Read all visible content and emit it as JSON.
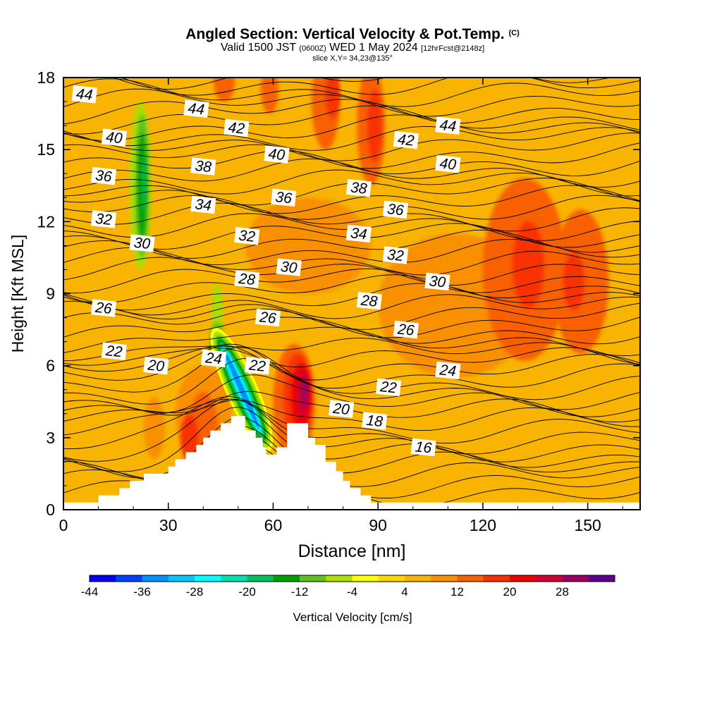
{
  "title": {
    "main": "Angled Section: Vertical Velocity & Pot.Temp.",
    "copyright": "(C)",
    "valid_prefix": "Valid 1500 JST",
    "valid_utc": "(0600Z)",
    "valid_date": "WED 1 May 2024",
    "forecast_info": "[12hrFcst@2148z]",
    "slice": "slice X,Y= 34,23@135°"
  },
  "chart_data": {
    "type": "heatmap",
    "xlabel": "Distance [nm]",
    "ylabel": "Height [Kft MSL]",
    "xlim": [
      0,
      165
    ],
    "ylim": [
      0,
      18
    ],
    "x_ticks": [
      "0",
      "30",
      "60",
      "90",
      "120",
      "150"
    ],
    "y_ticks": [
      "0",
      "3",
      "6",
      "9",
      "12",
      "15",
      "18"
    ],
    "x_tick_values": [
      0,
      30,
      60,
      90,
      120,
      150
    ],
    "y_tick_values": [
      0,
      3,
      6,
      9,
      12,
      15,
      18
    ],
    "background_level_color": "#f8b400",
    "terrain_kft": [
      [
        0,
        0.3
      ],
      [
        10,
        0.3
      ],
      [
        10,
        0.6
      ],
      [
        16,
        0.6
      ],
      [
        16,
        0.9
      ],
      [
        19,
        0.9
      ],
      [
        19,
        1.2
      ],
      [
        23,
        1.2
      ],
      [
        23,
        1.5
      ],
      [
        30,
        1.5
      ],
      [
        30,
        1.8
      ],
      [
        32,
        1.8
      ],
      [
        32,
        2.1
      ],
      [
        35,
        2.1
      ],
      [
        35,
        2.4
      ],
      [
        38,
        2.4
      ],
      [
        38,
        2.7
      ],
      [
        40,
        2.7
      ],
      [
        40,
        3.0
      ],
      [
        42,
        3.0
      ],
      [
        42,
        3.3
      ],
      [
        45,
        3.3
      ],
      [
        45,
        3.6
      ],
      [
        48,
        3.6
      ],
      [
        48,
        3.9
      ],
      [
        52,
        3.9
      ],
      [
        52,
        3.3
      ],
      [
        55,
        3.3
      ],
      [
        55,
        3.0
      ],
      [
        57,
        3.0
      ],
      [
        57,
        2.6
      ],
      [
        58,
        2.6
      ],
      [
        58,
        2.3
      ],
      [
        61,
        2.3
      ],
      [
        61,
        2.6
      ],
      [
        64,
        2.6
      ],
      [
        64,
        3.6
      ],
      [
        70,
        3.6
      ],
      [
        70,
        3.0
      ],
      [
        72,
        3.0
      ],
      [
        72,
        2.7
      ],
      [
        75,
        2.7
      ],
      [
        75,
        2.0
      ],
      [
        78,
        2.0
      ],
      [
        78,
        1.6
      ],
      [
        80,
        1.6
      ],
      [
        80,
        1.2
      ],
      [
        82,
        1.2
      ],
      [
        82,
        0.9
      ],
      [
        85,
        0.9
      ],
      [
        85,
        0.6
      ],
      [
        88,
        0.6
      ],
      [
        88,
        0.3
      ],
      [
        165,
        0.3
      ]
    ],
    "velocity_cells": [
      {
        "x": 46,
        "y": 17.8,
        "rx": 3,
        "ry": 0.8,
        "level": 12
      },
      {
        "x": 59,
        "y": 17.5,
        "rx": 2.5,
        "ry": 1.0,
        "level": 12
      },
      {
        "x": 75,
        "y": 17.0,
        "rx": 4,
        "ry": 2.0,
        "level": 12
      },
      {
        "x": 77,
        "y": 17.3,
        "rx": 2,
        "ry": 1.0,
        "level": 16
      },
      {
        "x": 88,
        "y": 16.0,
        "rx": 4,
        "ry": 2.5,
        "level": 12
      },
      {
        "x": 89,
        "y": 16.0,
        "rx": 2,
        "ry": 1.5,
        "level": 16
      },
      {
        "x": 70,
        "y": 11.0,
        "rx": 18,
        "ry": 2.0,
        "level": 8
      },
      {
        "x": 112,
        "y": 8.5,
        "rx": 22,
        "ry": 3.0,
        "level": 8
      },
      {
        "x": 132,
        "y": 10.0,
        "rx": 12,
        "ry": 3.8,
        "level": 12
      },
      {
        "x": 133,
        "y": 10.2,
        "rx": 4.5,
        "ry": 1.8,
        "level": 16
      },
      {
        "x": 148,
        "y": 9.5,
        "rx": 8,
        "ry": 3.0,
        "level": 12
      },
      {
        "x": 146,
        "y": 9.5,
        "rx": 3,
        "ry": 1.2,
        "level": 16
      },
      {
        "x": 26,
        "y": 3.4,
        "rx": 3,
        "ry": 1.3,
        "level": 8
      },
      {
        "x": 40,
        "y": 4.0,
        "rx": 8,
        "ry": 2.0,
        "level": 8
      },
      {
        "x": 40,
        "y": 3.5,
        "rx": 4,
        "ry": 1.4,
        "level": 12
      },
      {
        "x": 36,
        "y": 3.0,
        "rx": 2.5,
        "ry": 1.0,
        "level": 16
      },
      {
        "x": 66,
        "y": 4.5,
        "rx": 6,
        "ry": 2.4,
        "level": 12
      },
      {
        "x": 67,
        "y": 4.7,
        "rx": 4,
        "ry": 1.8,
        "level": 16
      },
      {
        "x": 68,
        "y": 4.7,
        "rx": 2.8,
        "ry": 1.4,
        "level": 20
      },
      {
        "x": 68.5,
        "y": 4.8,
        "rx": 1.8,
        "ry": 1.0,
        "level": 24
      },
      {
        "x": 69,
        "y": 4.9,
        "rx": 1.0,
        "ry": 0.6,
        "level": 28
      },
      {
        "x": 22,
        "y": 13.5,
        "rx": 3,
        "ry": 3.5,
        "level": -8
      },
      {
        "x": 22.5,
        "y": 13.5,
        "rx": 2,
        "ry": 3.0,
        "level": -12
      },
      {
        "x": 22.5,
        "y": 13.5,
        "rx": 1.2,
        "ry": 2.2,
        "level": -16
      },
      {
        "x": 23,
        "y": 13.6,
        "rx": 0.6,
        "ry": 1.2,
        "level": -20
      },
      {
        "x": 44,
        "y": 8.4,
        "rx": 1.6,
        "ry": 1.0,
        "level": -8
      },
      {
        "x": 44,
        "y": 7.0,
        "rx": 2.0,
        "ry": 0.8,
        "level": -12
      }
    ],
    "updraft_band": [
      [
        -4,
        7
      ],
      [
        -8,
        6
      ],
      [
        -12,
        5
      ],
      [
        -16,
        4.2
      ],
      [
        -20,
        3.4
      ],
      [
        -24,
        2.6
      ],
      [
        -28,
        2.0
      ],
      [
        -32,
        1.5
      ],
      [
        -36,
        1.0
      ]
    ],
    "theta_labels": [
      {
        "text": "44",
        "x": 6,
        "y": 17.3
      },
      {
        "text": "44",
        "x": 38,
        "y": 16.7
      },
      {
        "text": "40",
        "x": 14.5,
        "y": 15.5
      },
      {
        "text": "42",
        "x": 49.5,
        "y": 15.9
      },
      {
        "text": "40",
        "x": 61,
        "y": 14.8
      },
      {
        "text": "42",
        "x": 98,
        "y": 15.4
      },
      {
        "text": "44",
        "x": 110,
        "y": 16.0
      },
      {
        "text": "36",
        "x": 11.5,
        "y": 13.9
      },
      {
        "text": "38",
        "x": 40,
        "y": 14.3
      },
      {
        "text": "38",
        "x": 84.5,
        "y": 13.4
      },
      {
        "text": "40",
        "x": 110,
        "y": 14.4
      },
      {
        "text": "32",
        "x": 11.5,
        "y": 12.1
      },
      {
        "text": "34",
        "x": 40,
        "y": 12.7
      },
      {
        "text": "36",
        "x": 63,
        "y": 13.0
      },
      {
        "text": "36",
        "x": 95,
        "y": 12.5
      },
      {
        "text": "30",
        "x": 22.5,
        "y": 11.1
      },
      {
        "text": "32",
        "x": 52.5,
        "y": 11.4
      },
      {
        "text": "34",
        "x": 84.5,
        "y": 11.5
      },
      {
        "text": "32",
        "x": 95,
        "y": 10.6
      },
      {
        "text": "30",
        "x": 64.5,
        "y": 10.1
      },
      {
        "text": "28",
        "x": 52.5,
        "y": 9.6
      },
      {
        "text": "30",
        "x": 107,
        "y": 9.5
      },
      {
        "text": "26",
        "x": 11.5,
        "y": 8.4
      },
      {
        "text": "26",
        "x": 58.5,
        "y": 8.0
      },
      {
        "text": "28",
        "x": 87.5,
        "y": 8.7
      },
      {
        "text": "26",
        "x": 98,
        "y": 7.5
      },
      {
        "text": "22",
        "x": 14.5,
        "y": 6.6
      },
      {
        "text": "24",
        "x": 43,
        "y": 6.3
      },
      {
        "text": "20",
        "x": 26.5,
        "y": 6.0
      },
      {
        "text": "22",
        "x": 55.5,
        "y": 6.0
      },
      {
        "text": "24",
        "x": 110,
        "y": 5.8
      },
      {
        "text": "22",
        "x": 93,
        "y": 5.1
      },
      {
        "text": "20",
        "x": 79.5,
        "y": 4.2
      },
      {
        "text": "18",
        "x": 89,
        "y": 3.7
      },
      {
        "text": "16",
        "x": 103,
        "y": 2.6
      }
    ],
    "colorbar": {
      "label": "Vertical Velocity [cm/s]",
      "levels": [
        -44,
        -40,
        -36,
        -32,
        -28,
        -24,
        -20,
        -16,
        -12,
        -8,
        -4,
        0,
        4,
        8,
        12,
        16,
        20,
        24,
        28,
        32
      ],
      "tick_labels": [
        "-44",
        "-36",
        "-28",
        "-20",
        "-12",
        "-4",
        "4",
        "12",
        "20",
        "28"
      ],
      "colors": [
        "#0000ff",
        "#0040ff",
        "#0090ff",
        "#00c8ff",
        "#00ffff",
        "#00e0b0",
        "#00c060",
        "#00a000",
        "#60c020",
        "#a8e000",
        "#ffff00",
        "#ffd400",
        "#f8b400",
        "#f89000",
        "#f86000",
        "#f83000",
        "#f00000",
        "#d00030",
        "#a00060",
        "#600090"
      ]
    }
  }
}
